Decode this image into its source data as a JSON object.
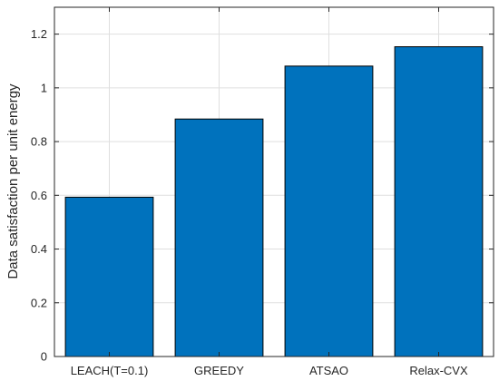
{
  "chart_data": {
    "type": "bar",
    "title": "",
    "xlabel": "",
    "ylabel": "Data satisfaction per unit energy",
    "categories": [
      "LEACH(T=0.1)",
      "GREEDY",
      "ATSAO",
      "Relax-CVX"
    ],
    "values": [
      0.593,
      0.884,
      1.081,
      1.153
    ],
    "ylim": [
      0,
      1.3
    ],
    "yticks": [
      0,
      0.2,
      0.4,
      0.6,
      0.8,
      1,
      1.2
    ],
    "ytick_labels": [
      "0",
      "0.2",
      "0.4",
      "0.6",
      "0.8",
      "1",
      "1.2"
    ],
    "grid": true,
    "bar_color": "#0072BD",
    "edge_color": "#000000",
    "grid_color": "#dfdfdf",
    "axis_color": "#262626"
  }
}
